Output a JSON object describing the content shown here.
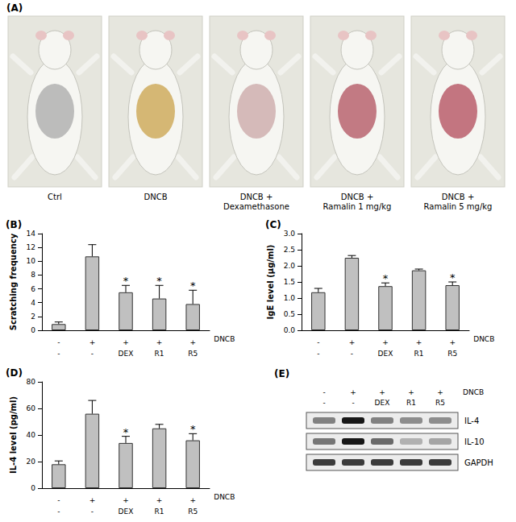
{
  "chart_data": [
    {
      "type": "bar",
      "title": "(B)",
      "categories": [
        "-\n-",
        "+\n-",
        "+\nDEX",
        "+\nR1",
        "+\nR5"
      ],
      "row_label": "DNCB",
      "values": [
        0.9,
        10.7,
        5.5,
        4.6,
        3.8
      ],
      "errors": [
        0.3,
        1.7,
        1.0,
        1.9,
        2.0
      ],
      "annotations": [
        null,
        null,
        "*",
        "*",
        "*"
      ],
      "y_label": "Scratching frequency",
      "ylim": [
        0,
        14
      ],
      "yticks": [
        0,
        2,
        4,
        6,
        8,
        10,
        12,
        14
      ],
      "color": "#c0c0c0",
      "grid": false
    },
    {
      "type": "bar",
      "title": "(C)",
      "categories": [
        "-\n-",
        "+\n-",
        "+\nDEX",
        "+\nR1",
        "+\nR5"
      ],
      "row_label": "DNCB",
      "values": [
        1.18,
        2.25,
        1.37,
        1.86,
        1.4
      ],
      "errors": [
        0.12,
        0.07,
        0.1,
        0.04,
        0.1
      ],
      "annotations": [
        null,
        null,
        "*",
        null,
        "*"
      ],
      "y_label": "IgE level (μg/ml)",
      "ylim": [
        0,
        3
      ],
      "yticks": [
        {
          "value": 0,
          "label": "0.0"
        },
        0.5,
        {
          "value": 1,
          "label": "1.0"
        },
        1.5,
        {
          "value": 2,
          "label": "2.0"
        },
        2.5,
        {
          "value": 3,
          "label": "3.0"
        }
      ],
      "color": "#c0c0c0",
      "grid": false
    },
    {
      "type": "bar",
      "title": "(D)",
      "categories": [
        "-\n-",
        "+\n-",
        "+\nDEX",
        "+\nR1",
        "+\nR5"
      ],
      "row_label": "DNCB",
      "values": [
        18,
        56,
        34,
        45,
        36
      ],
      "errors": [
        2.5,
        10,
        5,
        3,
        5
      ],
      "annotations": [
        null,
        null,
        "*",
        null,
        "*"
      ],
      "y_label": "IL-4 level (pg/ml)",
      "ylim": [
        0,
        80
      ],
      "yticks": [
        0,
        20,
        40,
        60,
        80
      ],
      "color": "#c0c0c0",
      "grid": false
    }
  ],
  "photos": {
    "label": "(A)",
    "captions": [
      "Ctrl",
      "DNCB",
      "DNCB +\nDexamethasone",
      "DNCB +\nRamalin 1 mg/kg",
      "DNCB +\nRamalin 5 mg/kg"
    ]
  },
  "blot": {
    "label": "(E)",
    "row_label": "DNCB",
    "lanes": [
      "-\n-",
      "+\n-",
      "+\nDEX",
      "+\nR1",
      "+\nR5"
    ],
    "bands": [
      {
        "label": "IL-4",
        "intensity": [
          0.45,
          0.9,
          0.45,
          0.4,
          0.4
        ]
      },
      {
        "label": "IL-10",
        "intensity": [
          0.5,
          0.9,
          0.55,
          0.25,
          0.3
        ]
      },
      {
        "label": "GAPDH",
        "intensity": [
          0.75,
          0.75,
          0.75,
          0.75,
          0.75
        ]
      }
    ]
  }
}
